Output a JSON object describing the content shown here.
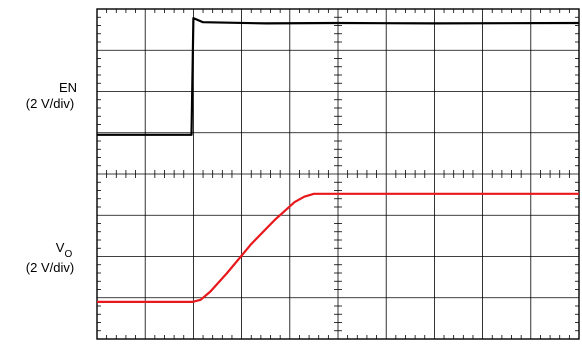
{
  "chart_data": {
    "type": "line",
    "grid": true,
    "x_divisions": 10,
    "y_divisions": 8,
    "x_range": [
      0,
      10
    ],
    "y_range": [
      0,
      8
    ],
    "x_unit": "div",
    "y_unit": "div",
    "channels": [
      {
        "label": "EN",
        "scale": "(2 V/div)",
        "color": "#000000",
        "points": [
          [
            0,
            4.95
          ],
          [
            1.96,
            4.95
          ],
          [
            2.0,
            7.78
          ],
          [
            2.2,
            7.68
          ],
          [
            3.5,
            7.65
          ],
          [
            5,
            7.66
          ],
          [
            7,
            7.65
          ],
          [
            10,
            7.66
          ]
        ]
      },
      {
        "label": "V",
        "label_subscript": "O",
        "scale": "(2 V/div)",
        "color": "#e8181c",
        "points": [
          [
            0,
            0.9
          ],
          [
            1.98,
            0.9
          ],
          [
            2.15,
            0.95
          ],
          [
            2.35,
            1.15
          ],
          [
            2.7,
            1.6
          ],
          [
            3.2,
            2.3
          ],
          [
            3.7,
            2.9
          ],
          [
            4.1,
            3.32
          ],
          [
            4.3,
            3.45
          ],
          [
            4.5,
            3.52
          ],
          [
            5,
            3.52
          ],
          [
            7,
            3.52
          ],
          [
            10,
            3.52
          ]
        ]
      }
    ]
  }
}
